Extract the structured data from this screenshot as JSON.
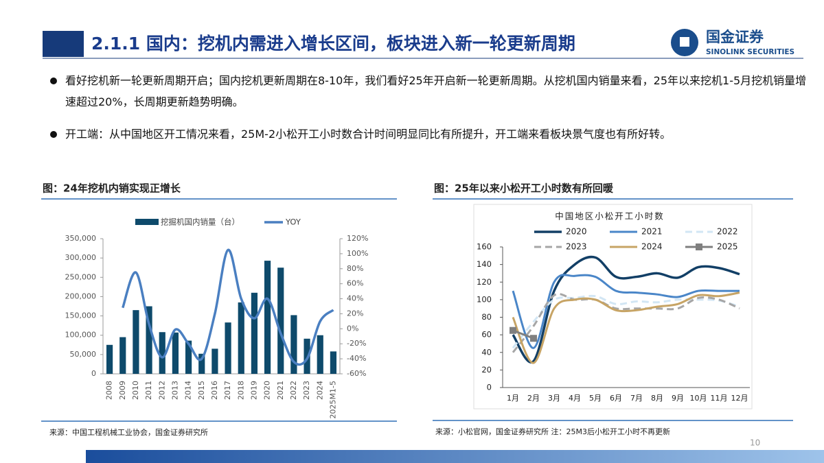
{
  "header": {
    "title": "2.1.1 国内：挖机内需进入增长区间，板块进入新一轮更新周期",
    "logo_cn": "国金证券",
    "logo_en": "SINOLINK SECURITIES"
  },
  "bullets": [
    "看好挖机新一轮更新周期开启；国内挖机更新周期在8-10年，我们看好25年开启新一轮更新周期。从挖机国内销量来看，25年以来挖机1-5月挖机销量增速超过20%，长周期更新趋势明确。",
    "开工端：从中国地区开工情况来看，25M-2小松开工小时数合计时间明显同比有所提升，开工端来看板块景气度也有所好转。"
  ],
  "page_number": "10",
  "chart_data": [
    {
      "type": "bar_line",
      "caption": "图：24年挖机内销实现正增长",
      "source": "来源：中国工程机械工业协会，国金证券研究所",
      "categories": [
        "2008",
        "2009",
        "2010",
        "2011",
        "2012",
        "2013",
        "2014",
        "2015",
        "2016",
        "2017",
        "2018",
        "2019",
        "2020",
        "2021",
        "2022",
        "2023",
        "2024",
        "2025M1-5"
      ],
      "series": [
        {
          "name": "挖掘机国内销量（台）",
          "color": "#0e4a6b",
          "kind": "bar",
          "values": [
            75000,
            95000,
            165000,
            175000,
            108000,
            107000,
            86000,
            52000,
            65000,
            133000,
            185000,
            210000,
            293000,
            275000,
            152000,
            91000,
            100000,
            58000
          ]
        },
        {
          "name": "YOY",
          "color": "#4a7fc1",
          "kind": "line",
          "axis": "y2",
          "values": [
            null,
            28,
            75,
            6,
            -38,
            -1,
            -20,
            -40,
            20,
            105,
            40,
            14,
            40,
            -6,
            -44,
            -40,
            10,
            25
          ]
        }
      ],
      "ylim": [
        0,
        350000
      ],
      "yticks": [
        0,
        {
          "value": 50000,
          "label": "50,000"
        },
        {
          "value": 100000,
          "label": "100,000"
        },
        {
          "value": 150000,
          "label": "150,000"
        },
        {
          "value": 200000,
          "label": "200,000"
        },
        {
          "value": 250000,
          "label": "250,000"
        },
        {
          "value": 300000,
          "label": "300,000"
        },
        {
          "value": 350000,
          "label": "350,000"
        }
      ],
      "y2lim": [
        -60,
        120
      ],
      "y2ticks": [
        {
          "value": -60,
          "label": "-60%"
        },
        {
          "value": -40,
          "label": "-40%"
        },
        {
          "value": -20,
          "label": "-20%"
        },
        {
          "value": 0,
          "label": "0%"
        },
        {
          "value": 20,
          "label": "20%"
        },
        {
          "value": 40,
          "label": "40%"
        },
        {
          "value": 60,
          "label": "60%"
        },
        {
          "value": 80,
          "label": "80%"
        },
        {
          "value": 100,
          "label": "100%"
        },
        {
          "value": 120,
          "label": "120%"
        }
      ]
    },
    {
      "type": "line",
      "caption": "图：25年以来小松开工小时数有所回暖",
      "source": "来源：小松官网，国金证券研究所 注：25M3后小松开工小时不再更新",
      "title": "中国地区小松开工小时数",
      "categories": [
        "1月",
        "2月",
        "3月",
        "4月",
        "5月",
        "6月",
        "7月",
        "8月",
        "9月",
        "10月",
        "11月",
        "12月"
      ],
      "series": [
        {
          "name": "2020",
          "color": "#123f66",
          "width": 3.5,
          "values": [
            60,
            30,
            110,
            140,
            148,
            126,
            126,
            130,
            125,
            137,
            136,
            129
          ]
        },
        {
          "name": "2021",
          "color": "#4a86c8",
          "width": 3,
          "values": [
            110,
            45,
            120,
            127,
            126,
            110,
            108,
            106,
            103,
            110,
            110,
            110
          ]
        },
        {
          "name": "2022",
          "color": "#d2e6f4",
          "width": 3,
          "style": "dashed",
          "values": [
            45,
            75,
            100,
            102,
            104,
            95,
            98,
            97,
            100,
            100,
            99,
            92
          ]
        },
        {
          "name": "2023",
          "color": "#a6a6a6",
          "width": 3,
          "style": "dashed",
          "values": [
            40,
            70,
            105,
            100,
            100,
            90,
            90,
            90,
            90,
            102,
            100,
            90
          ]
        },
        {
          "name": "2024",
          "color": "#c7a465",
          "width": 3,
          "values": [
            80,
            28,
            90,
            100,
            100,
            88,
            88,
            92,
            95,
            105,
            104,
            108
          ]
        },
        {
          "name": "2025",
          "color": "#7f7f7f",
          "width": 3,
          "marker": "square",
          "values": [
            65,
            56,
            null,
            null,
            null,
            null,
            null,
            null,
            null,
            null,
            null,
            null
          ]
        }
      ],
      "ylim": [
        0,
        160
      ],
      "yticks": [
        0,
        20,
        40,
        60,
        80,
        100,
        120,
        140,
        160
      ]
    }
  ]
}
